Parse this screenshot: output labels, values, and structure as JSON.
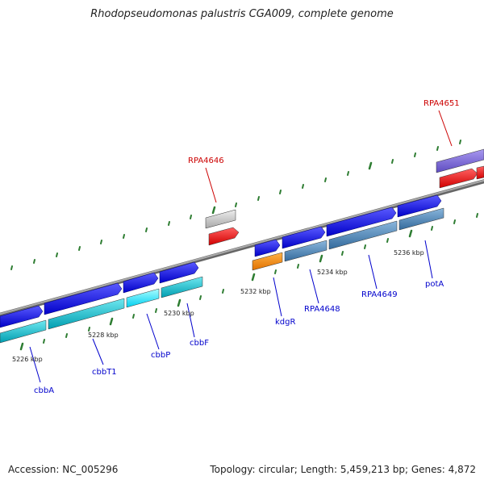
{
  "title": "Rhodopseudomonas palustris CGA009, complete genome",
  "footer": {
    "accession": "Accession: NC_005296",
    "summary": "Topology: circular; Length: 5,459,213 bp; Genes: 4,872"
  },
  "scale": [
    "5226 kbp",
    "5228 kbp",
    "5230 kbp",
    "5232 kbp",
    "5234 kbp",
    "5236 kbp"
  ],
  "labels_top": [
    "RPA4646",
    "RPA4651"
  ],
  "labels_bottom": [
    "cbbA",
    "cbbT1",
    "cbbP",
    "cbbF",
    "kdgR",
    "RPA4648",
    "RPA4649",
    "potA"
  ],
  "colors": {
    "backbone": "#808080",
    "tick": "#2e7d32",
    "label_blue": "#0000cc",
    "label_red": "#cc0000",
    "gene_blue": "#0a0ae0",
    "teal": "#00b5c8",
    "steel": "#4a7fb0",
    "orange": "#ff8c00",
    "red": "#ee1111",
    "gray": "#c8c8c8",
    "purple": "#7b68d8",
    "cyan": "#00e5ff"
  }
}
